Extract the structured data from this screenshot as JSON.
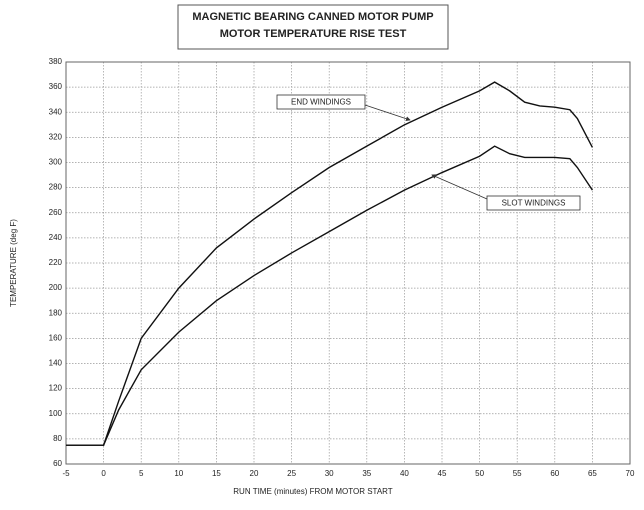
{
  "chart_data": {
    "type": "line",
    "title": [
      "MAGNETIC BEARING CANNED MOTOR PUMP",
      "MOTOR TEMPERATURE RISE TEST"
    ],
    "x_label": "RUN TIME (minutes)    FROM MOTOR START",
    "y_label": "TEMPERATURE (deg F)",
    "x": [
      -5,
      0,
      2,
      5,
      10,
      15,
      20,
      25,
      30,
      35,
      40,
      45,
      50,
      52,
      54,
      56,
      58,
      60,
      62,
      63,
      65
    ],
    "series": [
      {
        "name": "END WINDINGS",
        "color": "#111111",
        "values": [
          75,
          75,
          110,
          160,
          200,
          232,
          255,
          276,
          296,
          313,
          330,
          344,
          357,
          364,
          357,
          348,
          345,
          344,
          342,
          335,
          312
        ]
      },
      {
        "name": "SLOT WINDINGS",
        "color": "#111111",
        "values": [
          75,
          75,
          103,
          135,
          165,
          190,
          210,
          228,
          245,
          262,
          278,
          292,
          305,
          313,
          307,
          304,
          304,
          304,
          303,
          296,
          278
        ]
      }
    ],
    "xlim": [
      -5,
      70
    ],
    "xticks": [
      -5,
      0,
      5,
      10,
      15,
      20,
      25,
      30,
      35,
      40,
      45,
      50,
      55,
      60,
      65,
      70
    ],
    "ylim": [
      60,
      380
    ],
    "yticks": [
      60,
      80,
      100,
      120,
      140,
      160,
      180,
      200,
      220,
      240,
      260,
      280,
      300,
      320,
      340,
      360,
      380
    ],
    "grid": true
  }
}
